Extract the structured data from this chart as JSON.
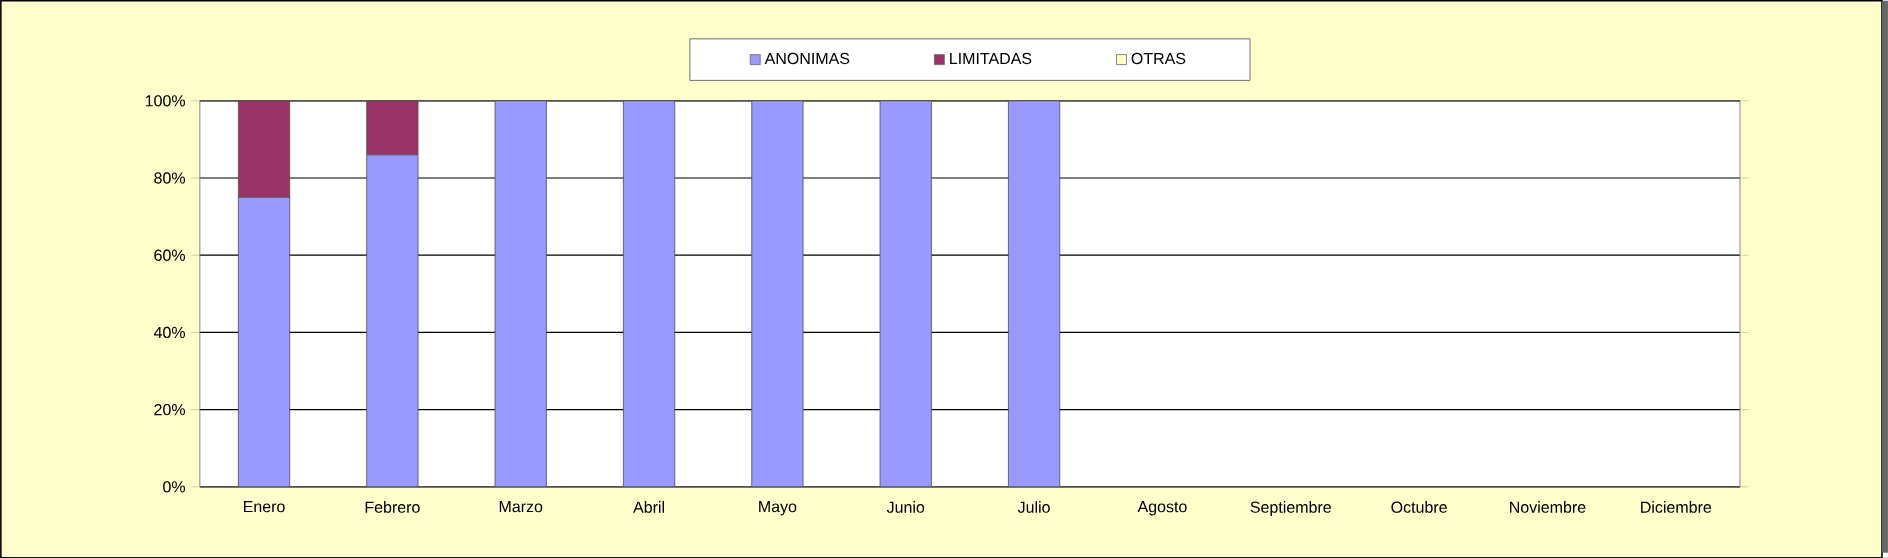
{
  "chart_data": {
    "type": "bar",
    "stacked": true,
    "categories": [
      "Enero",
      "Febrero",
      "Marzo",
      "Abril",
      "Mayo",
      "Junio",
      "Julio",
      "Agosto",
      "Septiembre",
      "Octubre",
      "Noviembre",
      "Diciembre"
    ],
    "series": [
      {
        "name": "ANONIMAS",
        "color": "#9999ff",
        "values": [
          75,
          86,
          100,
          100,
          100,
          100,
          100,
          0,
          0,
          0,
          0,
          0
        ]
      },
      {
        "name": "LIMITADAS",
        "color": "#993366",
        "values": [
          25,
          14,
          0,
          0,
          0,
          0,
          0,
          0,
          0,
          0,
          0,
          0
        ]
      },
      {
        "name": "OTRAS",
        "color": "#ffffcc",
        "values": [
          0,
          0,
          0,
          0,
          0,
          0,
          0,
          0,
          0,
          0,
          0,
          0
        ]
      }
    ],
    "ylim": [
      0,
      100
    ],
    "yticks": [
      {
        "value": 0,
        "label": "0%"
      },
      {
        "value": 20,
        "label": "20%"
      },
      {
        "value": 40,
        "label": "40%"
      },
      {
        "value": 60,
        "label": "60%"
      },
      {
        "value": 80,
        "label": "80%"
      },
      {
        "value": 100,
        "label": "100%"
      }
    ],
    "grid": "y",
    "legend": "top"
  }
}
